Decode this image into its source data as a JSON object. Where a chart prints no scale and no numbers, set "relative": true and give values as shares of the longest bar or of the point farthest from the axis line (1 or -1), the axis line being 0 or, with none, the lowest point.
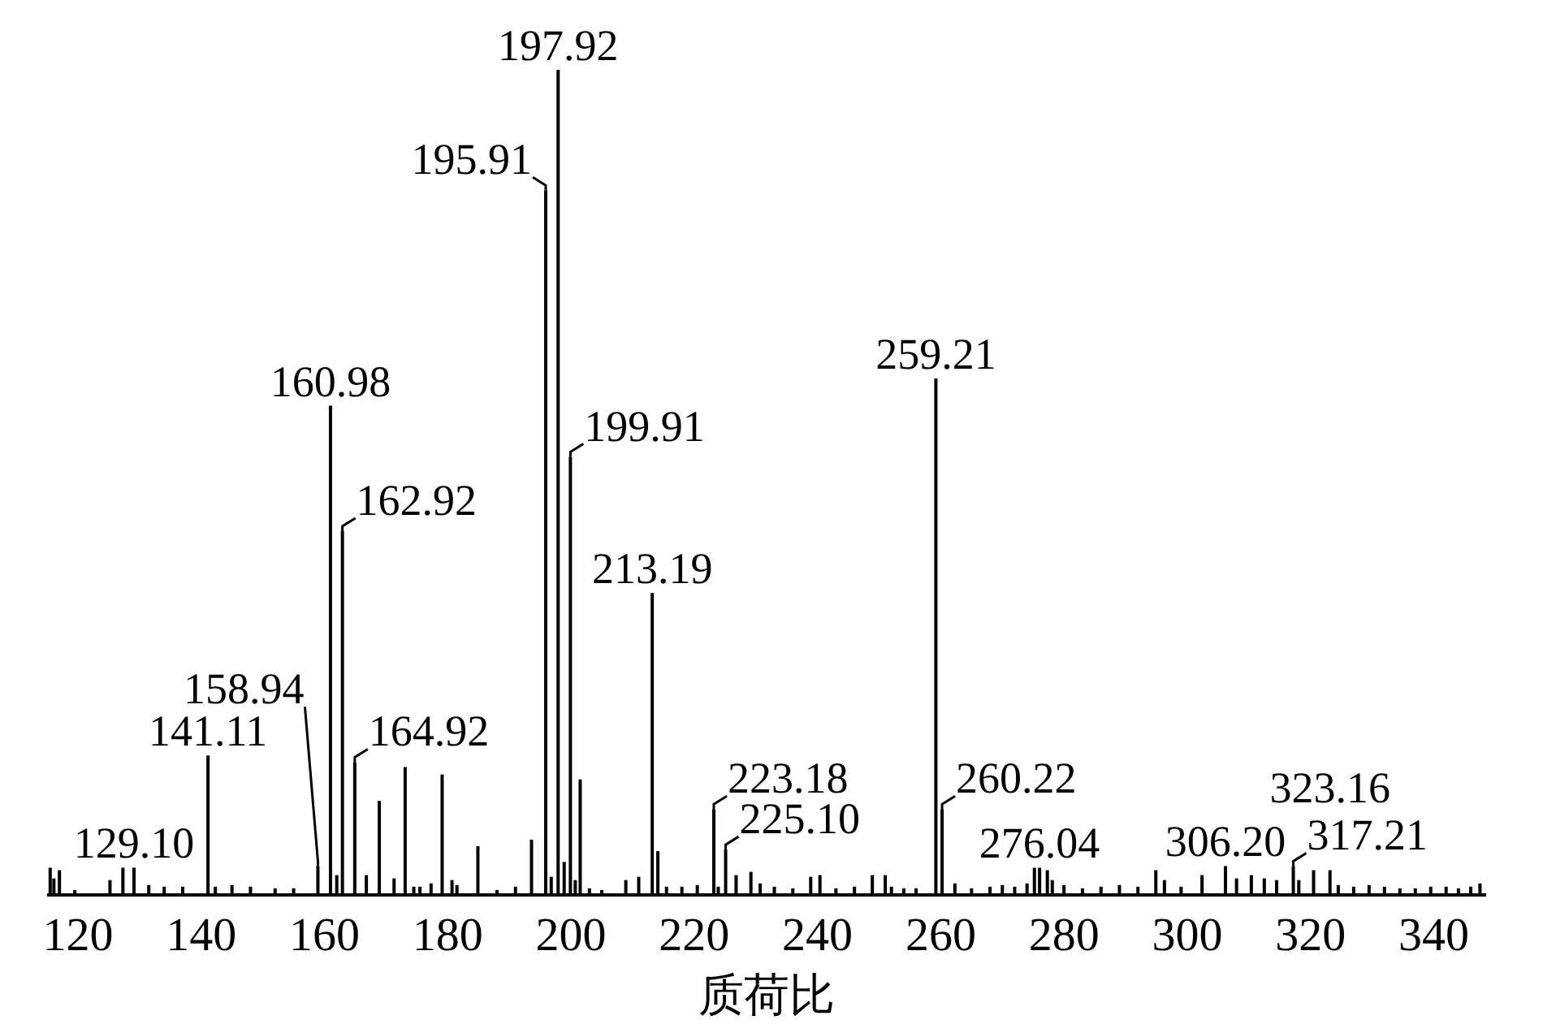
{
  "chart_data": {
    "type": "bar",
    "relative": true,
    "color": "#000000",
    "xlabel": "质荷比",
    "xlim": [
      115,
      348.5
    ],
    "xticks": [
      120,
      140,
      160,
      180,
      200,
      220,
      240,
      260,
      280,
      300,
      320,
      340
    ],
    "x": [
      115.5,
      116.1,
      117.0,
      119.5,
      125.2,
      127.3,
      129.1,
      131.5,
      134,
      137,
      141.11,
      142.3,
      145.0,
      148,
      152,
      155,
      158.94,
      160.98,
      162.0,
      162.92,
      164.92,
      166.8,
      168.9,
      171.3,
      173.1,
      174.5,
      175.5,
      177.3,
      179.1,
      180.7,
      181.5,
      184.9,
      188,
      191,
      193.6,
      195.91,
      196.8,
      197.92,
      198.9,
      199.91,
      200.7,
      201.5,
      203,
      205,
      208.9,
      211.0,
      213.19,
      214.1,
      215.5,
      218,
      220.5,
      223.18,
      223.9,
      225.1,
      226.8,
      229.2,
      230.7,
      233,
      236,
      238.9,
      240.4,
      243,
      246,
      248.9,
      251.0,
      252,
      254,
      256,
      259.21,
      260.22,
      262.3,
      265,
      268,
      270,
      272,
      274,
      275.2,
      276.04,
      277.3,
      278.1,
      280,
      283,
      286,
      289,
      292,
      294.9,
      296.3,
      299,
      302.4,
      306.2,
      308,
      310.4,
      312.5,
      314.5,
      317.21,
      318.1,
      320.5,
      323.16,
      324.5,
      327,
      329.5,
      332,
      334.5,
      337,
      339.5,
      342,
      344,
      346,
      347.5
    ],
    "values": [
      0.033,
      0.02,
      0.03,
      0.006,
      0.018,
      0.033,
      0.033,
      0.012,
      0.01,
      0.01,
      0.169,
      0.01,
      0.012,
      0.01,
      0.008,
      0.008,
      0.035,
      0.593,
      0.024,
      0.441,
      0.161,
      0.024,
      0.114,
      0.02,
      0.155,
      0.01,
      0.01,
      0.014,
      0.146,
      0.018,
      0.012,
      0.059,
      0.006,
      0.01,
      0.067,
      0.854,
      0.022,
      1,
      0.04,
      0.531,
      0.018,
      0.14,
      0.008,
      0.006,
      0.018,
      0.022,
      0.366,
      0.053,
      0.01,
      0.01,
      0.012,
      0.104,
      0.01,
      0.055,
      0.024,
      0.028,
      0.014,
      0.01,
      0.008,
      0.022,
      0.024,
      0.008,
      0.01,
      0.024,
      0.024,
      0.01,
      0.008,
      0.008,
      0.626,
      0.104,
      0.014,
      0.008,
      0.01,
      0.012,
      0.01,
      0.014,
      0.033,
      0.033,
      0.03,
      0.018,
      0.012,
      0.008,
      0.01,
      0.012,
      0.01,
      0.03,
      0.018,
      0.01,
      0.024,
      0.035,
      0.02,
      0.024,
      0.02,
      0.018,
      0.035,
      0.018,
      0.03,
      0.03,
      0.012,
      0.01,
      0.012,
      0.01,
      0.008,
      0.008,
      0.01,
      0.01,
      0.008,
      0.01,
      0.014
    ],
    "annotations": [
      {
        "text": "129.10",
        "x": 129.1,
        "y": 0.033
      },
      {
        "text": "141.11",
        "x": 141.11,
        "y": 0.169
      },
      {
        "text": "158.94",
        "x": 158.94,
        "y": 0.035
      },
      {
        "text": "160.98",
        "x": 160.98,
        "y": 0.593
      },
      {
        "text": "162.92",
        "x": 162.92,
        "y": 0.441
      },
      {
        "text": "164.92",
        "x": 164.92,
        "y": 0.161
      },
      {
        "text": "195.91",
        "x": 195.91,
        "y": 0.854
      },
      {
        "text": "197.92",
        "x": 197.92,
        "y": 1
      },
      {
        "text": "199.91",
        "x": 199.91,
        "y": 0.531
      },
      {
        "text": "213.19",
        "x": 213.19,
        "y": 0.366
      },
      {
        "text": "223.18",
        "x": 223.18,
        "y": 0.104
      },
      {
        "text": "225.10",
        "x": 225.1,
        "y": 0.055
      },
      {
        "text": "259.21",
        "x": 259.21,
        "y": 0.626
      },
      {
        "text": "260.22",
        "x": 260.22,
        "y": 0.104
      },
      {
        "text": "276.04",
        "x": 276.04,
        "y": 0.033
      },
      {
        "text": "306.20",
        "x": 306.2,
        "y": 0.035
      },
      {
        "text": "317.21",
        "x": 317.21,
        "y": 0.035
      },
      {
        "text": "323.16",
        "x": 323.16,
        "y": 0.03
      }
    ]
  }
}
